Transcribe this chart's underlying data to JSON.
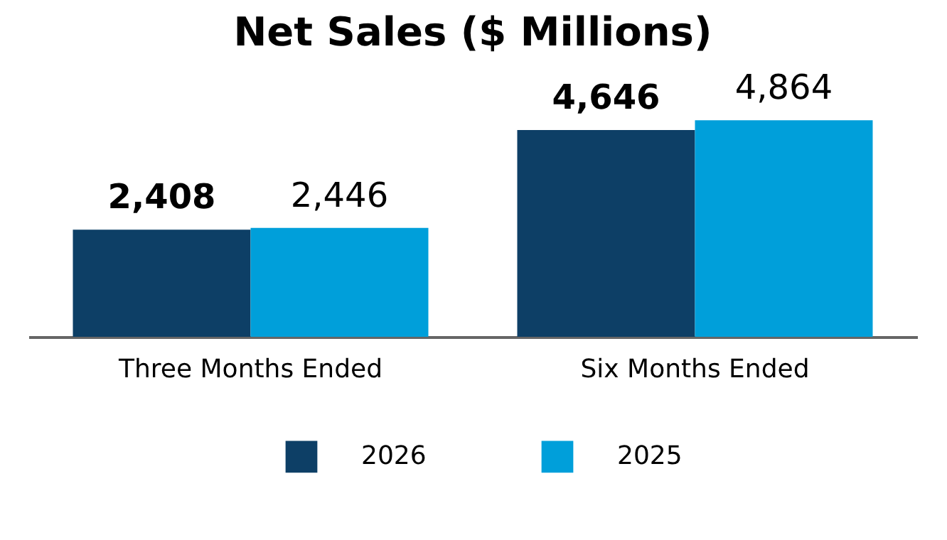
{
  "chart_data": {
    "type": "bar",
    "title": "Net Sales ($ Millions)",
    "categories": [
      "Three Months Ended",
      "Six Months Ended"
    ],
    "series": [
      {
        "name": "2026",
        "color": "#0d3f66",
        "values": [
          2408,
          4646
        ],
        "value_labels": [
          "2,408",
          "4,646"
        ]
      },
      {
        "name": "2025",
        "color": "#009fda",
        "values": [
          2446,
          4864
        ],
        "value_labels": [
          "2,446",
          "4,864"
        ]
      }
    ],
    "legend": "bottom",
    "grid": false
  }
}
